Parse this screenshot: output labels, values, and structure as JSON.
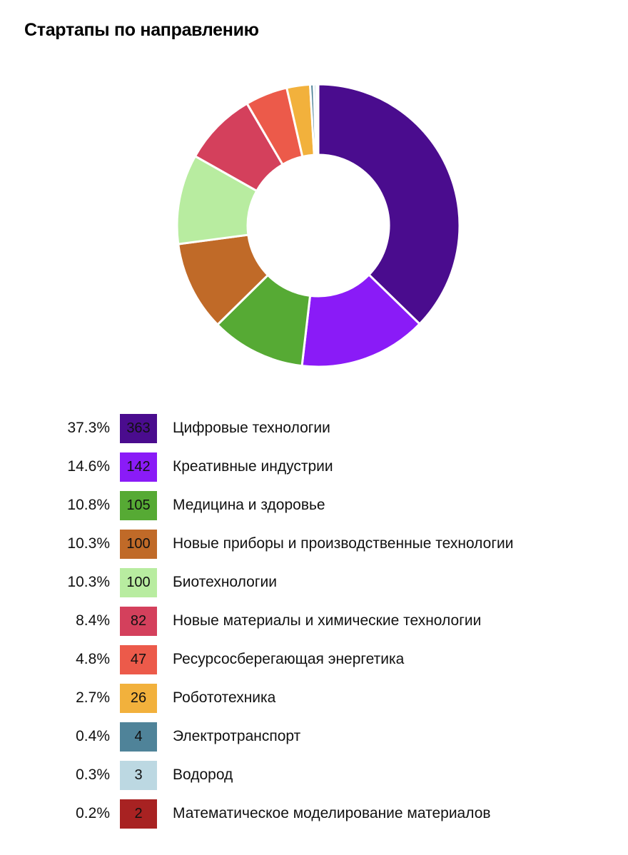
{
  "chart_data": {
    "type": "pie",
    "title": "Стартапы по направлению",
    "categories": [
      "Цифровые технологии",
      "Креативные индустрии",
      "Медицина и здоровье",
      "Новые приборы и производственные технологии",
      "Биотехнологии",
      "Новые материалы и химические технологии",
      "Ресурсосберегающая энергетика",
      "Робототехника",
      "Электротранспорт",
      "Водород",
      "Математическое моделирование материалов"
    ],
    "values": [
      363,
      142,
      105,
      100,
      100,
      82,
      47,
      26,
      4,
      3,
      2
    ],
    "percents": [
      "37.3%",
      "14.6%",
      "10.8%",
      "10.3%",
      "10.3%",
      "8.4%",
      "4.8%",
      "2.7%",
      "0.4%",
      "0.3%",
      "0.2%"
    ],
    "colors": [
      "#4a0c8e",
      "#8a1bf7",
      "#56aa34",
      "#c06a28",
      "#b8eca0",
      "#d4405c",
      "#ec5a4a",
      "#f2b13c",
      "#4f8399",
      "#bcd8e2",
      "#a82222"
    ],
    "legend_position": "bottom",
    "inner_radius_fraction": 0.5
  }
}
